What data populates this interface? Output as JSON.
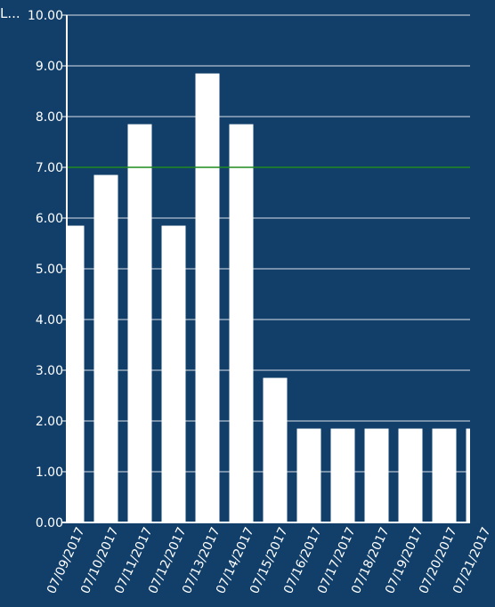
{
  "chart_data": {
    "type": "bar",
    "ylabel": "L...",
    "categories": [
      "07/09/2017",
      "07/10/2017",
      "07/11/2017",
      "07/12/2017",
      "07/13/2017",
      "07/14/2017",
      "07/15/2017",
      "07/16/2017",
      "07/17/2017",
      "07/18/2017",
      "07/19/2017",
      "07/20/2017",
      "07/21/2017"
    ],
    "values": [
      5.85,
      6.85,
      7.85,
      5.85,
      8.85,
      7.85,
      2.85,
      1.85,
      1.85,
      1.85,
      1.85,
      1.85,
      1.85
    ],
    "ylim": [
      0,
      10
    ],
    "yticks": [
      "0.00",
      "1.00",
      "2.00",
      "3.00",
      "4.00",
      "5.00",
      "6.00",
      "7.00",
      "8.00",
      "9.00",
      "10.00"
    ],
    "reference_line": 7,
    "grid": true,
    "colors": {
      "background": "#123f6a",
      "bar": "#ffffff",
      "grid": "#ffffff",
      "reference_line": "#1f8a1f",
      "text": "#ffffff"
    }
  }
}
